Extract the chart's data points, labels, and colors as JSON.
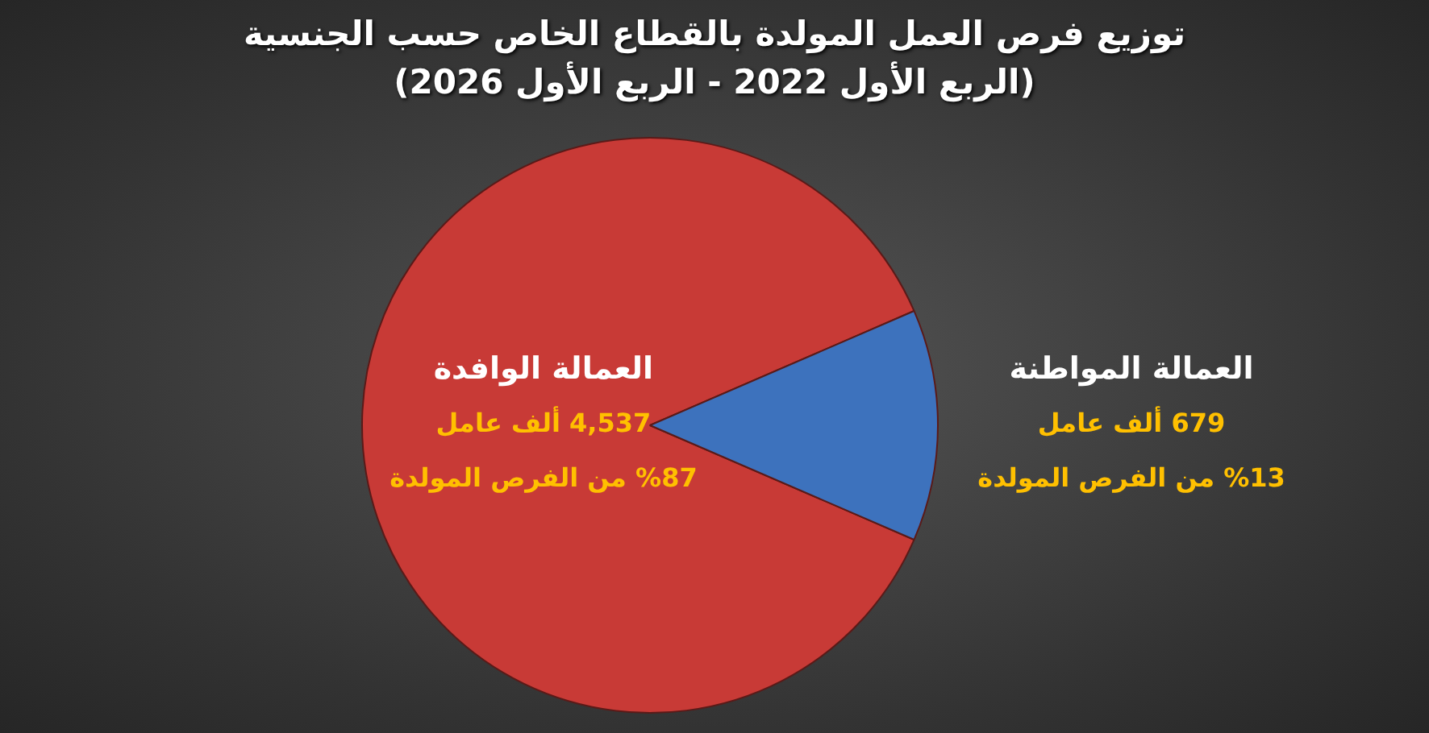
{
  "chart_data": {
    "type": "pie",
    "title": "توزيع فرص العمل المولدة بالقطاع الخاص حسب الجنسية",
    "subtitle": "(الربع الأول 2022 - الربع الأول 2026)",
    "categories": [
      "العمالة الوافدة",
      "العمالة المواطنة"
    ],
    "values": [
      4537,
      679
    ],
    "colors": [
      "#c83a36",
      "#3d72bd"
    ],
    "value_labels": [
      "4,537 ألف عامل",
      "679 ألف عامل"
    ],
    "annotations": [
      "%87 من الفرص المولدة",
      "%13 من الفرص المولدة"
    ],
    "legend": false
  }
}
